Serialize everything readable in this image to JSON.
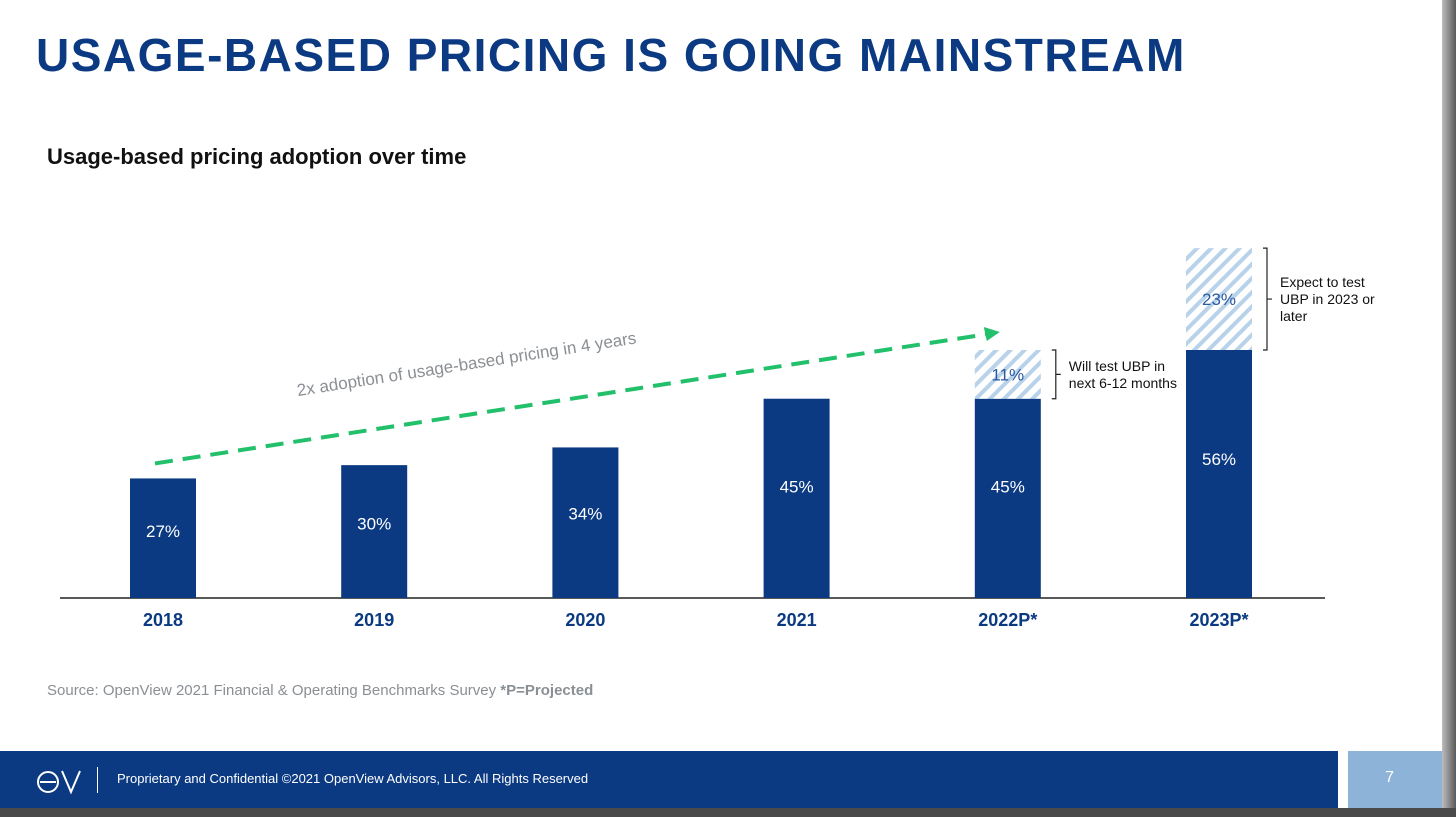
{
  "slide": {
    "title": "USAGE-BASED PRICING IS GOING MAINSTREAM",
    "subtitle": "Usage-based pricing adoption over time",
    "source_text": "Source: OpenView 2021 Financial & Operating Benchmarks Survey ",
    "source_note": "*P=Projected",
    "footer_text": "Proprietary and Confidential ©2021 OpenView Advisors, LLC. All Rights Reserved",
    "page_number": "7",
    "logo_text": "OV"
  },
  "chart_data": {
    "type": "bar",
    "stacked": true,
    "categories": [
      "2018",
      "2019",
      "2020",
      "2021",
      "2022P*",
      "2023P*"
    ],
    "series": [
      {
        "values": [
          27,
          30,
          34,
          45,
          45,
          56
        ],
        "labels": [
          "27%",
          "30%",
          "34%",
          "45%",
          "45%",
          "56%"
        ],
        "color": "#0b3a82",
        "pattern": "solid"
      },
      {
        "values": [
          0,
          0,
          0,
          0,
          11,
          23
        ],
        "labels": [
          "",
          "",
          "",
          "",
          "11%",
          "23%"
        ],
        "color": "#b8d2ea",
        "pattern": "hatched"
      }
    ],
    "ylim": [
      0,
      80
    ],
    "annotations": {
      "trend_label": "2x adoption of usage-based pricing in 4 years",
      "trend_color": "#22c06a",
      "bracket_2022": [
        "Will test UBP in",
        "next 6-12 months"
      ],
      "bracket_2023": [
        "Expect to test",
        "UBP in 2023 or",
        "later"
      ]
    }
  }
}
